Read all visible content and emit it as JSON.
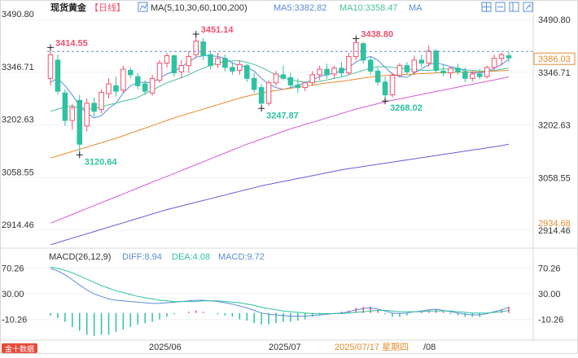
{
  "header": {
    "symbol": "现货黄金",
    "period": "【日线】",
    "ma_title": "MA(5,10,30,60,100,200)",
    "ma5_label": "MA5:3382.82",
    "ma10_label": "MA10:3358.47",
    "ma_more": "MA"
  },
  "toolbar": {
    "icons": [
      "grid-icon",
      "minus-icon",
      "layout-icon",
      "expand-icon"
    ]
  },
  "macd": {
    "title": "MACD(26,12,9)",
    "diff_label": "DIFF:8.94",
    "dea_label": "DEA:4.08",
    "macd_label": "MACD:9.72",
    "ticks": [
      "70.26",
      "30.00",
      "-10.26"
    ]
  },
  "footer": {
    "logo_text": "金十数据",
    "dates": [
      "2025/06",
      "2025/07",
      "2025/07/17 星期四",
      "/08"
    ]
  },
  "colors": {
    "up": "#f0506e",
    "down": "#2ec2a1",
    "ma5": "#5a8dd8",
    "ma10": "#4cbf9a",
    "ma30": "#e88a2e",
    "ma60": "#d75ad4",
    "ma100": "#6a5cd6",
    "diff": "#5a8dd8",
    "dea": "#2ec2a1"
  },
  "chart_data": {
    "type": "candlestick",
    "title": "",
    "y_ticks": [
      3490.8,
      3346.71,
      3202.63,
      3058.55,
      2914.46
    ],
    "ylim": [
      2870,
      3500
    ],
    "current_price_label": "3386.03",
    "right_low_label": "2934.68",
    "annotations": [
      {
        "label": "3414.55",
        "value": 3414.55,
        "index": 0
      },
      {
        "label": "3451.14",
        "value": 3451.14,
        "index": 20
      },
      {
        "label": "3120.64",
        "value": 3120.64,
        "index": 4
      },
      {
        "label": "3247.87",
        "value": 3247.87,
        "index": 29
      },
      {
        "label": "3438.80",
        "value": 3438.8,
        "index": 42
      },
      {
        "label": "3268.02",
        "value": 3268.02,
        "index": 46
      }
    ],
    "candles": [
      {
        "o": 3330,
        "h": 3414.55,
        "l": 3310,
        "c": 3395
      },
      {
        "o": 3380,
        "h": 3395,
        "l": 3285,
        "c": 3295
      },
      {
        "o": 3290,
        "h": 3300,
        "l": 3200,
        "c": 3215
      },
      {
        "o": 3215,
        "h": 3260,
        "l": 3190,
        "c": 3250
      },
      {
        "o": 3270,
        "h": 3285,
        "l": 3120.64,
        "c": 3150
      },
      {
        "o": 3200,
        "h": 3275,
        "l": 3185,
        "c": 3262
      },
      {
        "o": 3262,
        "h": 3278,
        "l": 3225,
        "c": 3240
      },
      {
        "o": 3245,
        "h": 3300,
        "l": 3235,
        "c": 3292
      },
      {
        "o": 3288,
        "h": 3330,
        "l": 3275,
        "c": 3315
      },
      {
        "o": 3310,
        "h": 3335,
        "l": 3280,
        "c": 3295
      },
      {
        "o": 3298,
        "h": 3365,
        "l": 3290,
        "c": 3355
      },
      {
        "o": 3352,
        "h": 3360,
        "l": 3330,
        "c": 3340
      },
      {
        "o": 3335,
        "h": 3345,
        "l": 3300,
        "c": 3310
      },
      {
        "o": 3315,
        "h": 3325,
        "l": 3285,
        "c": 3295
      },
      {
        "o": 3290,
        "h": 3340,
        "l": 3283,
        "c": 3330
      },
      {
        "o": 3325,
        "h": 3380,
        "l": 3318,
        "c": 3372
      },
      {
        "o": 3372,
        "h": 3400,
        "l": 3360,
        "c": 3392
      },
      {
        "o": 3392,
        "h": 3395,
        "l": 3335,
        "c": 3345
      },
      {
        "o": 3348,
        "h": 3380,
        "l": 3330,
        "c": 3365
      },
      {
        "o": 3365,
        "h": 3405,
        "l": 3345,
        "c": 3390
      },
      {
        "o": 3395,
        "h": 3451.14,
        "l": 3385,
        "c": 3432
      },
      {
        "o": 3430,
        "h": 3440,
        "l": 3380,
        "c": 3392
      },
      {
        "o": 3395,
        "h": 3405,
        "l": 3355,
        "c": 3365
      },
      {
        "o": 3368,
        "h": 3400,
        "l": 3358,
        "c": 3385
      },
      {
        "o": 3385,
        "h": 3395,
        "l": 3350,
        "c": 3360
      },
      {
        "o": 3360,
        "h": 3375,
        "l": 3340,
        "c": 3350
      },
      {
        "o": 3352,
        "h": 3380,
        "l": 3340,
        "c": 3368
      },
      {
        "o": 3365,
        "h": 3370,
        "l": 3320,
        "c": 3330
      },
      {
        "o": 3330,
        "h": 3345,
        "l": 3290,
        "c": 3300
      },
      {
        "o": 3305,
        "h": 3315,
        "l": 3247.87,
        "c": 3262
      },
      {
        "o": 3262,
        "h": 3325,
        "l": 3255,
        "c": 3318
      },
      {
        "o": 3318,
        "h": 3350,
        "l": 3310,
        "c": 3342
      },
      {
        "o": 3340,
        "h": 3365,
        "l": 3325,
        "c": 3330
      },
      {
        "o": 3332,
        "h": 3345,
        "l": 3305,
        "c": 3312
      },
      {
        "o": 3312,
        "h": 3330,
        "l": 3290,
        "c": 3305
      },
      {
        "o": 3305,
        "h": 3320,
        "l": 3295,
        "c": 3318
      },
      {
        "o": 3318,
        "h": 3350,
        "l": 3310,
        "c": 3340
      },
      {
        "o": 3340,
        "h": 3365,
        "l": 3325,
        "c": 3355
      },
      {
        "o": 3355,
        "h": 3370,
        "l": 3330,
        "c": 3340
      },
      {
        "o": 3342,
        "h": 3365,
        "l": 3330,
        "c": 3358
      },
      {
        "o": 3358,
        "h": 3375,
        "l": 3335,
        "c": 3345
      },
      {
        "o": 3345,
        "h": 3400,
        "l": 3340,
        "c": 3390
      },
      {
        "o": 3390,
        "h": 3438.8,
        "l": 3380,
        "c": 3428
      },
      {
        "o": 3425,
        "h": 3430,
        "l": 3370,
        "c": 3380
      },
      {
        "o": 3380,
        "h": 3390,
        "l": 3340,
        "c": 3350
      },
      {
        "o": 3350,
        "h": 3360,
        "l": 3310,
        "c": 3320
      },
      {
        "o": 3320,
        "h": 3335,
        "l": 3268.02,
        "c": 3285
      },
      {
        "o": 3285,
        "h": 3345,
        "l": 3278,
        "c": 3338
      },
      {
        "o": 3338,
        "h": 3372,
        "l": 3332,
        "c": 3365
      },
      {
        "o": 3365,
        "h": 3375,
        "l": 3340,
        "c": 3348
      },
      {
        "o": 3348,
        "h": 3392,
        "l": 3340,
        "c": 3380
      },
      {
        "o": 3380,
        "h": 3395,
        "l": 3360,
        "c": 3372
      },
      {
        "o": 3372,
        "h": 3420,
        "l": 3362,
        "c": 3405
      },
      {
        "o": 3405,
        "h": 3410,
        "l": 3345,
        "c": 3352
      },
      {
        "o": 3350,
        "h": 3368,
        "l": 3336,
        "c": 3345
      },
      {
        "o": 3345,
        "h": 3362,
        "l": 3330,
        "c": 3358
      },
      {
        "o": 3358,
        "h": 3370,
        "l": 3340,
        "c": 3348
      },
      {
        "o": 3348,
        "h": 3360,
        "l": 3320,
        "c": 3330
      },
      {
        "o": 3330,
        "h": 3350,
        "l": 3322,
        "c": 3342
      },
      {
        "o": 3342,
        "h": 3356,
        "l": 3328,
        "c": 3335
      },
      {
        "o": 3335,
        "h": 3365,
        "l": 3330,
        "c": 3360
      },
      {
        "o": 3360,
        "h": 3395,
        "l": 3352,
        "c": 3385
      },
      {
        "o": 3385,
        "h": 3400,
        "l": 3365,
        "c": 3395
      },
      {
        "o": 3392,
        "h": 3402,
        "l": 3375,
        "c": 3386.03
      }
    ],
    "ma_lines": [
      {
        "name": "MA5",
        "values": [
          3320,
          3330,
          3310,
          3285,
          3255,
          3235,
          3222,
          3228,
          3248,
          3262,
          3290,
          3310,
          3318,
          3320,
          3318,
          3332,
          3342,
          3350,
          3362,
          3375,
          3388,
          3392,
          3392,
          3390,
          3385,
          3372,
          3365,
          3360,
          3350,
          3330,
          3315,
          3305,
          3300,
          3305,
          3312,
          3318,
          3326,
          3335,
          3340,
          3345,
          3350,
          3360,
          3375,
          3385,
          3390,
          3380,
          3360,
          3342,
          3335,
          3333,
          3345,
          3355,
          3368,
          3372,
          3368,
          3362,
          3358,
          3350,
          3345,
          3345,
          3348,
          3358,
          3368,
          3382.82
        ]
      },
      {
        "name": "MA10",
        "values": [
          3240,
          3246,
          3252,
          3255,
          3250,
          3248,
          3246,
          3252,
          3258,
          3262,
          3268,
          3272,
          3278,
          3288,
          3298,
          3308,
          3318,
          3325,
          3332,
          3340,
          3350,
          3358,
          3366,
          3372,
          3376,
          3378,
          3378,
          3374,
          3368,
          3360,
          3350,
          3340,
          3332,
          3326,
          3322,
          3320,
          3320,
          3322,
          3326,
          3330,
          3334,
          3340,
          3346,
          3352,
          3358,
          3362,
          3362,
          3360,
          3358,
          3356,
          3354,
          3352,
          3352,
          3354,
          3356,
          3356,
          3356,
          3354,
          3352,
          3350,
          3350,
          3352,
          3355,
          3358.47
        ]
      },
      {
        "name": "MA30",
        "values": [
          3112,
          3118,
          3124,
          3130,
          3136,
          3142,
          3148,
          3154,
          3160,
          3166,
          3173,
          3180,
          3187,
          3194,
          3201,
          3208,
          3215,
          3222,
          3228,
          3234,
          3240,
          3246,
          3252,
          3258,
          3264,
          3270,
          3276,
          3281,
          3286,
          3290,
          3294,
          3297,
          3300,
          3303,
          3306,
          3309,
          3312,
          3315,
          3318,
          3320,
          3322,
          3325,
          3328,
          3331,
          3334,
          3336,
          3338,
          3339,
          3340,
          3341,
          3342,
          3343,
          3344,
          3345,
          3346,
          3346,
          3347,
          3347,
          3348,
          3348,
          3349,
          3350,
          3351,
          3352
        ]
      },
      {
        "name": "MA60",
        "values": [
          2934,
          2942,
          2950,
          2958,
          2966,
          2974,
          2982,
          2990,
          2998,
          3006,
          3014,
          3022,
          3030,
          3038,
          3046,
          3054,
          3062,
          3070,
          3078,
          3086,
          3094,
          3102,
          3110,
          3118,
          3126,
          3134,
          3142,
          3150,
          3157,
          3164,
          3171,
          3178,
          3185,
          3192,
          3198,
          3204,
          3210,
          3216,
          3222,
          3228,
          3234,
          3240,
          3246,
          3251,
          3256,
          3261,
          3266,
          3270,
          3274,
          3278,
          3282,
          3286,
          3290,
          3294,
          3298,
          3302,
          3306,
          3310,
          3314,
          3318,
          3322,
          3326,
          3330,
          3334
        ]
      },
      {
        "name": "MA100",
        "values": [
          2875,
          2881,
          2887,
          2893,
          2899,
          2905,
          2911,
          2917,
          2923,
          2929,
          2935,
          2941,
          2947,
          2953,
          2959,
          2965,
          2971,
          2976,
          2981,
          2986,
          2991,
          2996,
          3001,
          3006,
          3011,
          3016,
          3021,
          3026,
          3031,
          3036,
          3040,
          3044,
          3048,
          3052,
          3056,
          3060,
          3064,
          3068,
          3072,
          3076,
          3080,
          3083,
          3086,
          3089,
          3092,
          3095,
          3098,
          3101,
          3104,
          3107,
          3110,
          3113,
          3116,
          3119,
          3122,
          3125,
          3128,
          3131,
          3134,
          3137,
          3140,
          3143,
          3146,
          3150
        ]
      }
    ],
    "macd_series": {
      "ylim": [
        -40,
        80
      ],
      "diff": [
        70,
        66,
        60,
        52,
        44,
        36,
        30,
        26,
        22,
        20,
        19,
        18,
        17,
        16,
        15,
        15,
        16,
        17,
        18,
        19,
        20,
        20,
        19,
        18,
        16,
        14,
        11,
        8,
        4,
        0,
        -2,
        -3,
        -4,
        -5,
        -5,
        -5,
        -4,
        -3,
        -2,
        -1,
        0,
        2,
        5,
        7,
        8,
        6,
        3,
        0,
        -1,
        0,
        2,
        3,
        5,
        6,
        4,
        2,
        0,
        -2,
        -3,
        -3,
        -1,
        2,
        5,
        8.94
      ],
      "dea": [
        72,
        70,
        67,
        63,
        58,
        53,
        48,
        43,
        39,
        35,
        32,
        29,
        26,
        24,
        22,
        20,
        19,
        18,
        18,
        18,
        18,
        19,
        19,
        19,
        18,
        17,
        16,
        14,
        12,
        9,
        7,
        5,
        3,
        2,
        1,
        0,
        -1,
        -1,
        -1,
        -1,
        -1,
        0,
        1,
        2,
        3,
        4,
        4,
        3,
        2,
        2,
        2,
        2,
        3,
        3,
        3,
        3,
        2,
        1,
        0,
        0,
        0,
        1,
        2,
        4.08
      ],
      "hist": [
        -4,
        -8,
        -14,
        -22,
        -28,
        -34,
        -36,
        -34,
        -34,
        -30,
        -26,
        -22,
        -18,
        -16,
        -14,
        -10,
        -6,
        -2,
        0,
        2,
        4,
        2,
        0,
        -2,
        -4,
        -6,
        -10,
        -12,
        -16,
        -18,
        -18,
        -16,
        -14,
        -14,
        -12,
        -10,
        -6,
        -4,
        -2,
        0,
        2,
        4,
        8,
        10,
        10,
        4,
        -2,
        -6,
        -6,
        -4,
        0,
        2,
        4,
        6,
        2,
        -2,
        -4,
        -6,
        -6,
        -6,
        -2,
        2,
        6,
        9.72
      ]
    }
  }
}
